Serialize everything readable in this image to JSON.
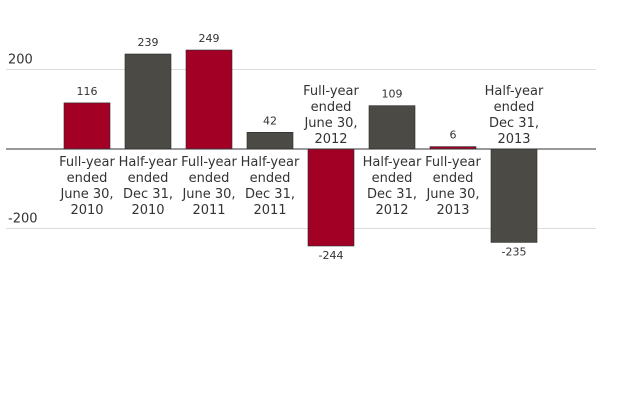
{
  "chart_data": {
    "type": "bar",
    "categories": [
      [
        "Full-year",
        "ended",
        "June 30,",
        "2010"
      ],
      [
        "Half-year",
        "ended",
        "Dec 31,",
        "2010"
      ],
      [
        "Full-year",
        "ended",
        "June 30,",
        "2011"
      ],
      [
        "Half-year",
        "ended",
        "Dec 31,",
        "2011"
      ],
      [
        "Full-year",
        "ended",
        "June 30,",
        "2012"
      ],
      [
        "Half-year",
        "ended",
        "Dec 31,",
        "2012"
      ],
      [
        "Full-year",
        "ended",
        "June 30,",
        "2013"
      ],
      [
        "Half-year",
        "ended",
        "Dec 31,",
        "2013"
      ]
    ],
    "values": [
      116,
      239,
      249,
      42,
      -244,
      109,
      6,
      -235
    ],
    "data_labels": [
      "116",
      "239",
      "249",
      "42",
      "-244",
      "109",
      "6",
      "-235"
    ],
    "y_ticks": [
      200,
      -200
    ],
    "y_tick_labels": [
      "200",
      "-200"
    ],
    "ylim": [
      -250,
      250
    ],
    "grid": true,
    "bar_colors": [
      "#a20025",
      "#4b4a44",
      "#a20025",
      "#4b4a44",
      "#a20025",
      "#4b4a44",
      "#a20025",
      "#4b4a44"
    ],
    "title": "",
    "xlabel": "",
    "ylabel": ""
  }
}
